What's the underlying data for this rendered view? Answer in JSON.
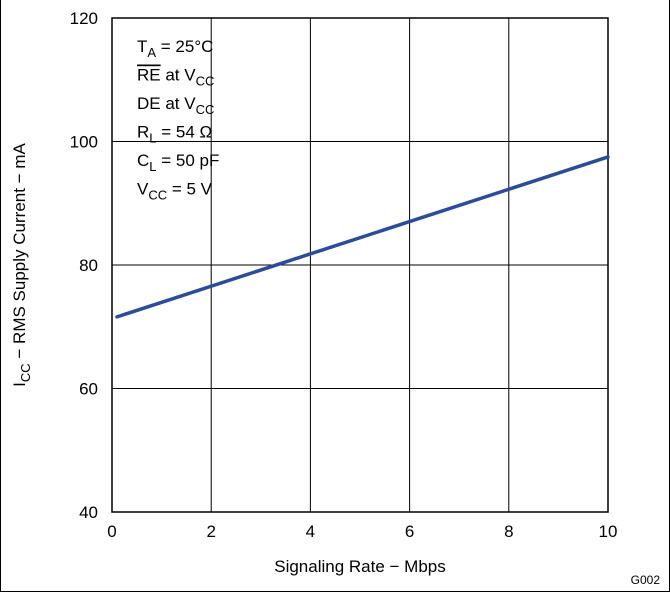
{
  "chart_data": {
    "type": "line",
    "xlabel": "Signaling Rate − Mbps",
    "ylabel": {
      "main": "I",
      "sub": "CC",
      "rest": " − RMS Supply Current − mA"
    },
    "xlim": [
      0,
      10
    ],
    "ylim": [
      40,
      120
    ],
    "x_ticks": [
      0,
      2,
      4,
      6,
      8,
      10
    ],
    "y_ticks": [
      40,
      60,
      80,
      100,
      120
    ],
    "grid": true,
    "series": [
      {
        "color": "#2b4c9b",
        "x": [
          0.1,
          10
        ],
        "y": [
          71.6,
          97.5
        ]
      }
    ],
    "conditions": [
      {
        "main": "T",
        "sub": "A",
        "rest": " = 25°C"
      },
      {
        "main": "RE",
        "overline": true,
        "rest": " at V",
        "sub2": "CC"
      },
      {
        "main": "DE at V",
        "sub": "CC",
        "rest": ""
      },
      {
        "main": "R",
        "sub": "L",
        "rest": " = 54 Ω"
      },
      {
        "main": "C",
        "sub": "L",
        "rest": " = 50 pF"
      },
      {
        "main": "V",
        "sub": "CC",
        "rest": " = 5 V"
      }
    ],
    "figure_id": "G002"
  }
}
